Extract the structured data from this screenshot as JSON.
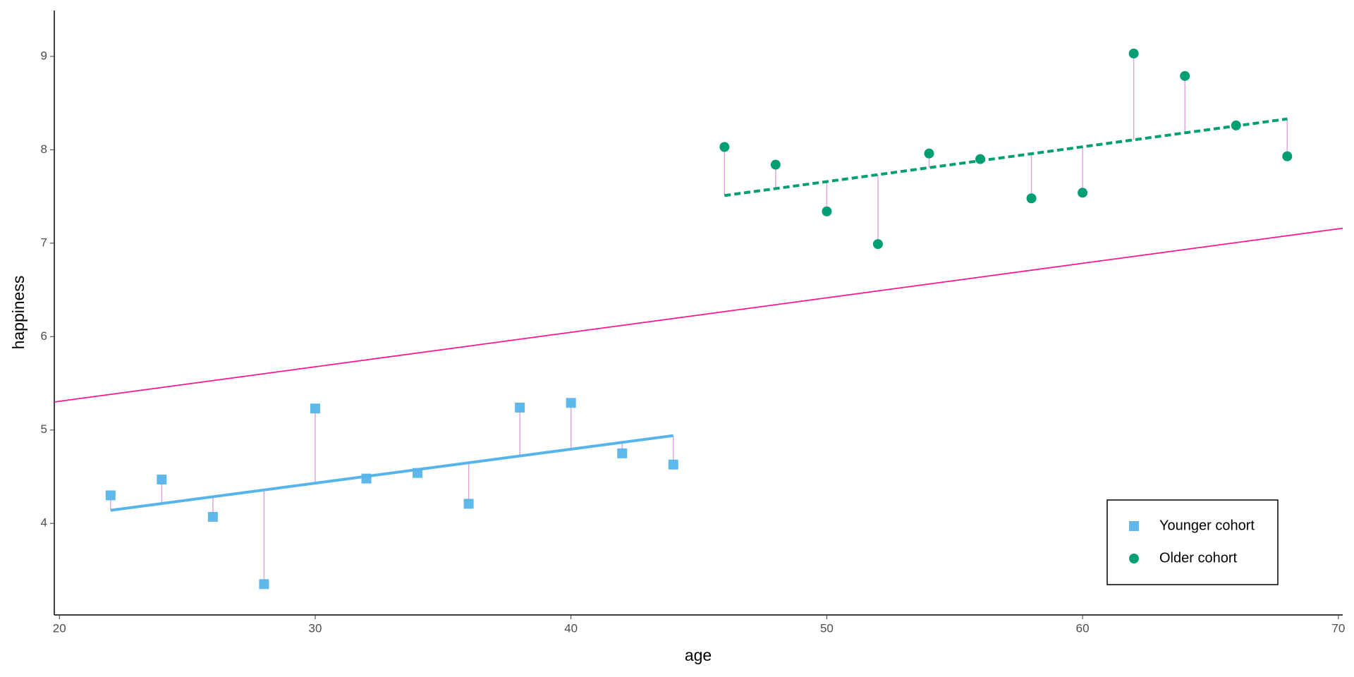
{
  "chart_data": {
    "type": "scatter",
    "x_label": "age",
    "y_label": "happiness",
    "xlim": [
      19.8,
      70.17
    ],
    "ylim": [
      3.02,
      9.49
    ],
    "xticks": [
      20,
      30,
      40,
      50,
      60,
      70
    ],
    "yticks": [
      4,
      5,
      6,
      7,
      8,
      9
    ],
    "legend": "bottom-right",
    "residual_color": "#dda0dd",
    "series": [
      {
        "name": "Younger cohort",
        "color": "#56b4e9",
        "marker": "square",
        "x": [
          22,
          24,
          26,
          28,
          30,
          32,
          34,
          36,
          38,
          40,
          42,
          44
        ],
        "values": [
          4.3,
          4.47,
          4.07,
          3.35,
          5.23,
          4.48,
          4.54,
          4.21,
          5.24,
          5.29,
          4.75,
          4.63
        ],
        "fit": {
          "x": [
            22,
            44
          ],
          "values": [
            4.14,
            4.94
          ],
          "dashed": false
        }
      },
      {
        "name": "Older cohort",
        "color": "#009e73",
        "marker": "circle",
        "x": [
          46,
          48,
          50,
          52,
          54,
          56,
          58,
          60,
          62,
          64,
          66,
          68
        ],
        "values": [
          8.03,
          7.84,
          7.34,
          6.99,
          7.96,
          7.9,
          7.48,
          7.54,
          9.03,
          8.79,
          8.26,
          7.93
        ],
        "fit": {
          "x": [
            46,
            68
          ],
          "values": [
            7.51,
            8.33
          ],
          "dashed": true
        }
      }
    ],
    "overall_fit": {
      "x": [
        19.8,
        70.17
      ],
      "values": [
        5.3,
        7.16
      ],
      "color": "#ff1493"
    }
  }
}
